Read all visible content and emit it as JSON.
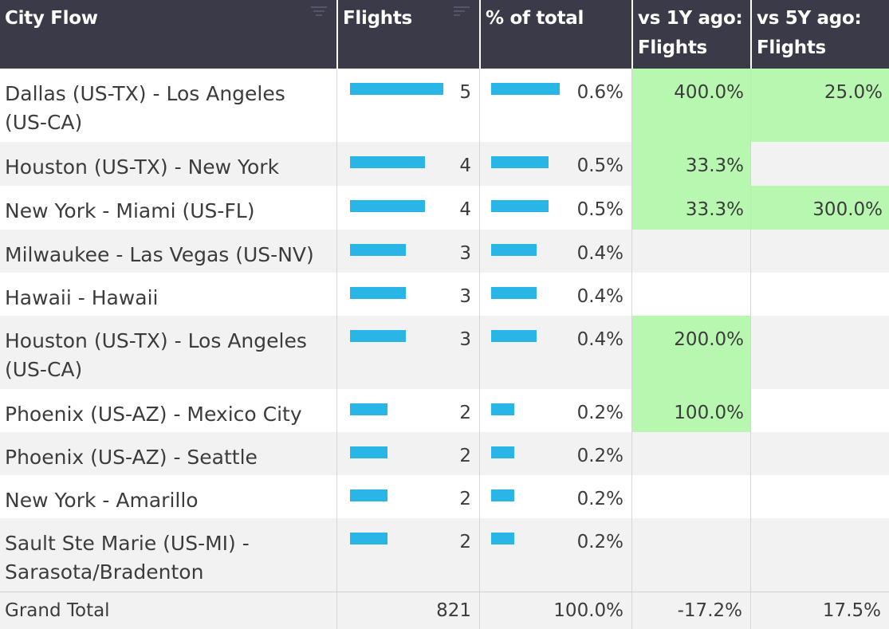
{
  "header": {
    "city_flow": "City Flow",
    "flights": "Flights",
    "pct_total": "% of total",
    "vs1y": "vs 1Y ago: Flights",
    "vs5y": "vs 5Y ago: Flights"
  },
  "colors": {
    "bar": "#29b6e6",
    "highlight": "#b7f7b0",
    "header_bg": "#3a3a48"
  },
  "rows": [
    {
      "city": "Dallas (US-TX) - Los Angeles (US-CA)",
      "flights": "5",
      "flights_value": 5,
      "pct": "0.6%",
      "pct_value": 0.6,
      "vs1y": "400.0%",
      "vs5y": "25.0%"
    },
    {
      "city": "Houston (US-TX) - New York",
      "flights": "4",
      "flights_value": 4,
      "pct": "0.5%",
      "pct_value": 0.5,
      "vs1y": "33.3%",
      "vs5y": ""
    },
    {
      "city": "New York - Miami (US-FL)",
      "flights": "4",
      "flights_value": 4,
      "pct": "0.5%",
      "pct_value": 0.5,
      "vs1y": "33.3%",
      "vs5y": "300.0%"
    },
    {
      "city": "Milwaukee - Las Vegas (US-NV)",
      "flights": "3",
      "flights_value": 3,
      "pct": "0.4%",
      "pct_value": 0.4,
      "vs1y": "",
      "vs5y": ""
    },
    {
      "city": "Hawaii - Hawaii",
      "flights": "3",
      "flights_value": 3,
      "pct": "0.4%",
      "pct_value": 0.4,
      "vs1y": "",
      "vs5y": ""
    },
    {
      "city": "Houston (US-TX) - Los Angeles (US-CA)",
      "flights": "3",
      "flights_value": 3,
      "pct": "0.4%",
      "pct_value": 0.4,
      "vs1y": "200.0%",
      "vs5y": ""
    },
    {
      "city": "Phoenix (US-AZ) - Mexico City",
      "flights": "2",
      "flights_value": 2,
      "pct": "0.2%",
      "pct_value": 0.2,
      "vs1y": "100.0%",
      "vs5y": ""
    },
    {
      "city": "Phoenix (US-AZ) - Seattle",
      "flights": "2",
      "flights_value": 2,
      "pct": "0.2%",
      "pct_value": 0.2,
      "vs1y": "",
      "vs5y": ""
    },
    {
      "city": "New York - Amarillo",
      "flights": "2",
      "flights_value": 2,
      "pct": "0.2%",
      "pct_value": 0.2,
      "vs1y": "",
      "vs5y": ""
    },
    {
      "city": "Sault Ste Marie (US-MI) - Sarasota/Bradenton",
      "flights": "2",
      "flights_value": 2,
      "pct": "0.2%",
      "pct_value": 0.2,
      "vs1y": "",
      "vs5y": ""
    }
  ],
  "total": {
    "label": "Grand Total",
    "flights": "821",
    "pct": "100.0%",
    "vs1y": "-17.2%",
    "vs5y": "17.5%"
  }
}
